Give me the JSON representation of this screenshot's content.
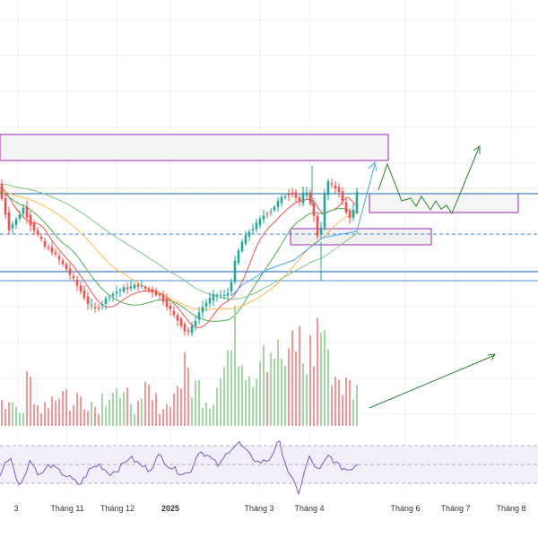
{
  "colors": {
    "up": "#26a69a",
    "down": "#ef5350",
    "vol_up": "#a5d6a7",
    "vol_down": "#ef9a9a",
    "ma_fast": "#ef5350",
    "ma_mid": "#4caf50",
    "ma_slow": "#ffb74d",
    "ma_long": "#81c784",
    "rsi": "#7e57c2",
    "zone_border": "#9c27b0",
    "hline": "#1565c0",
    "projection": "#2e7d32",
    "arrow_blue": "#42a5f5"
  },
  "chart_data": {
    "type": "candlestick",
    "title": "",
    "xlabel": "",
    "ylabel": "",
    "grid": true,
    "x_tick_labels": [
      "3",
      "Tháng 11",
      "Tháng 12",
      "2025",
      "Tháng 3",
      "Tháng 4",
      "Tháng 6",
      "Tháng 7",
      "Tháng 8"
    ],
    "bold_tick": "2025",
    "price_path": [
      [
        0,
        205
      ],
      [
        6,
        230
      ],
      [
        12,
        255
      ],
      [
        20,
        245
      ],
      [
        28,
        232
      ],
      [
        36,
        250
      ],
      [
        44,
        262
      ],
      [
        52,
        275
      ],
      [
        60,
        280
      ],
      [
        68,
        290
      ],
      [
        76,
        300
      ],
      [
        84,
        312
      ],
      [
        92,
        325
      ],
      [
        100,
        338
      ],
      [
        108,
        345
      ],
      [
        116,
        338
      ],
      [
        124,
        330
      ],
      [
        132,
        325
      ],
      [
        140,
        322
      ],
      [
        148,
        320
      ],
      [
        156,
        318
      ],
      [
        164,
        322
      ],
      [
        172,
        325
      ],
      [
        180,
        330
      ],
      [
        188,
        340
      ],
      [
        196,
        352
      ],
      [
        204,
        362
      ],
      [
        210,
        372
      ],
      [
        216,
        365
      ],
      [
        222,
        352
      ],
      [
        228,
        342
      ],
      [
        234,
        335
      ],
      [
        240,
        330
      ],
      [
        246,
        328
      ],
      [
        252,
        330
      ],
      [
        258,
        325
      ],
      [
        262,
        300
      ],
      [
        266,
        285
      ],
      [
        272,
        270
      ],
      [
        280,
        258
      ],
      [
        288,
        250
      ],
      [
        296,
        240
      ],
      [
        304,
        235
      ],
      [
        312,
        225
      ],
      [
        320,
        218
      ],
      [
        328,
        215
      ],
      [
        336,
        225
      ],
      [
        342,
        212
      ],
      [
        348,
        225
      ],
      [
        354,
        250
      ],
      [
        358,
        275
      ],
      [
        362,
        230
      ],
      [
        366,
        205
      ],
      [
        370,
        200
      ],
      [
        374,
        215
      ],
      [
        378,
        205
      ],
      [
        382,
        220
      ],
      [
        386,
        230
      ],
      [
        390,
        245
      ],
      [
        396,
        235
      ],
      [
        400,
        215
      ]
    ],
    "volume_levels": [
      0.2,
      0.3,
      0.15,
      0.4,
      0.2,
      0.25,
      0.3,
      0.35,
      0.2,
      0.3,
      0.25,
      0.2,
      0.3,
      0.4,
      0.25,
      0.3,
      0.2,
      0.35,
      0.25,
      0.2,
      0.3,
      0.45,
      0.55,
      0.4,
      0.3,
      0.25,
      0.6,
      0.75,
      0.9,
      0.7,
      0.55,
      0.95,
      0.8,
      0.7,
      0.6,
      0.85,
      0.65,
      0.75,
      1.0,
      0.6,
      0.5,
      0.4,
      0.35
    ],
    "rsi_values": [
      40,
      60,
      25,
      55,
      38,
      50,
      42,
      36,
      28,
      45,
      50,
      40,
      46,
      58,
      50,
      44,
      60,
      48,
      42,
      40,
      65,
      58,
      48,
      66,
      73,
      60,
      52,
      55,
      75,
      40,
      20,
      58,
      42,
      60,
      48,
      44,
      52
    ]
  }
}
